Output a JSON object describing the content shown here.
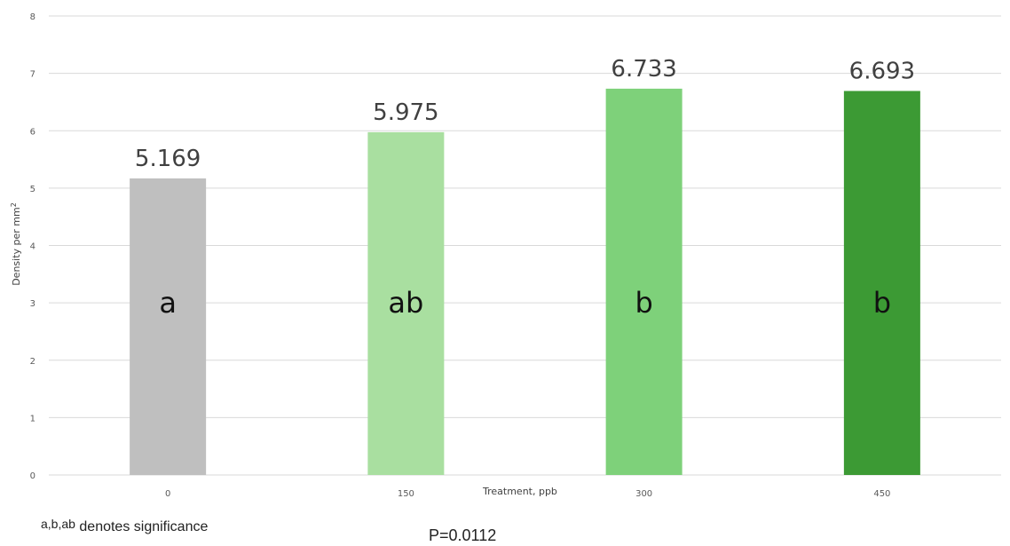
{
  "chart_data": {
    "type": "bar",
    "categories": [
      "0",
      "150",
      "300",
      "450"
    ],
    "values": [
      5.169,
      5.975,
      6.733,
      6.693
    ],
    "value_labels": [
      "5.169",
      "5.975",
      "6.733",
      "6.693"
    ],
    "significance_letters": [
      "a",
      "ab",
      "b",
      "b"
    ],
    "bar_colors": [
      "#bfbfbf",
      "#a9dfa0",
      "#7ed17a",
      "#3c9a34"
    ],
    "xlabel": "Treatment, ppb",
    "ylabel": "Density per mm",
    "ylabel_superscript": "2",
    "ylim": [
      0,
      8
    ],
    "yticks": [
      "0",
      "1",
      "2",
      "3",
      "4",
      "5",
      "6",
      "7",
      "8"
    ],
    "grid": true,
    "gridline_color": "#d9d9d9"
  },
  "footnotes": {
    "significance_letters": "a,b,ab",
    "significance_text": "denotes significance",
    "p_value": "P=0.0112"
  }
}
